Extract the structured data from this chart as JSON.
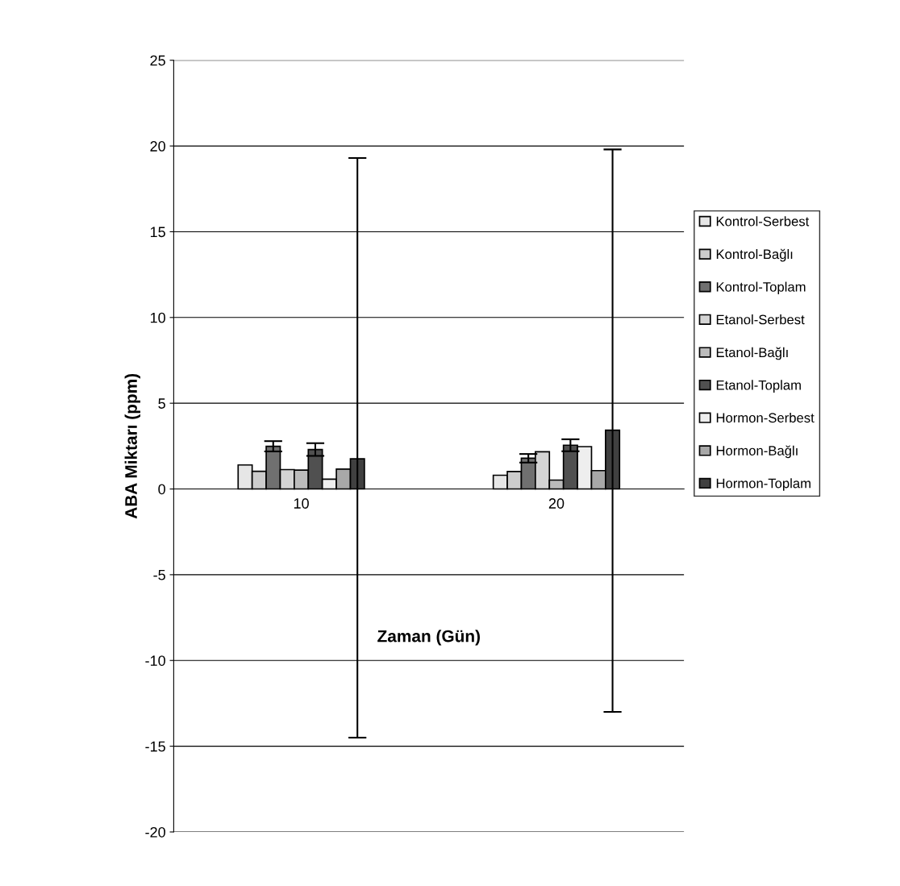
{
  "chart_data": {
    "type": "bar",
    "xlabel": "Zaman (Gün)",
    "ylabel": "ABA Miktarı (ppm)",
    "categories": [
      "10",
      "20"
    ],
    "series": [
      {
        "name": "Kontrol-Serbest",
        "color": "#e6e6e6",
        "values": [
          1.4,
          0.8
        ]
      },
      {
        "name": "Kontrol-Bağlı",
        "color": "#cccccc",
        "values": [
          1.03,
          1.02
        ]
      },
      {
        "name": "Kontrol-Toplam",
        "color": "#707070",
        "values": [
          2.49,
          1.79
        ],
        "errors": [
          0.3,
          0.25
        ]
      },
      {
        "name": "Etanol-Serbest",
        "color": "#d4d4d4",
        "values": [
          1.13,
          2.17
        ]
      },
      {
        "name": "Etanol-Bağlı",
        "color": "#bbbbbb",
        "values": [
          1.1,
          0.52
        ]
      },
      {
        "name": "Etanol-Toplam",
        "color": "#505050",
        "values": [
          2.3,
          2.55
        ],
        "errors": [
          0.37,
          0.35
        ]
      },
      {
        "name": "Hormon-Serbest",
        "color": "#eeeeee",
        "values": [
          0.57,
          2.47
        ]
      },
      {
        "name": "Hormon-Bağlı",
        "color": "#a8a8a8",
        "values": [
          1.16,
          1.07
        ]
      },
      {
        "name": "Hormon-Toplam",
        "color": "#404040",
        "values": [
          1.76,
          3.43
        ],
        "errors": [
          [
            -14.5,
            19.3
          ],
          [
            -13.0,
            19.8
          ]
        ]
      }
    ],
    "ylim": [
      -20,
      25
    ],
    "yticks": [
      -20,
      -15,
      -10,
      -5,
      0,
      5,
      10,
      15,
      20,
      25
    ],
    "grid": "y",
    "legend": "right"
  }
}
